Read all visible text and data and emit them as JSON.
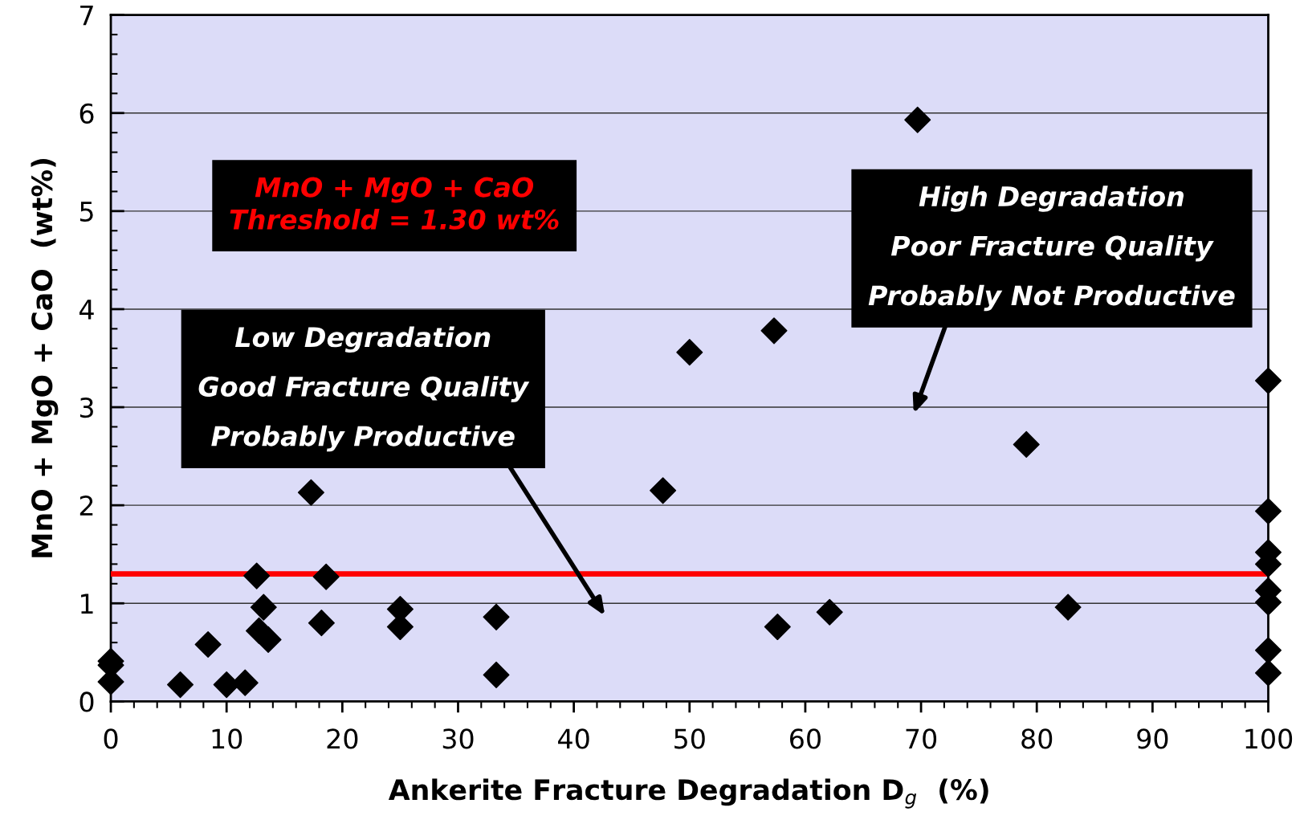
{
  "chart_data": {
    "type": "scatter",
    "xlabel": "Ankerite Fracture Degradation D$_{g}$  (%)",
    "ylabel": "MnO + MgO + CaO  (wt%)",
    "x": [
      0,
      0,
      0,
      6,
      8.4,
      10,
      11.6,
      12.6,
      12.8,
      13.2,
      13.6,
      17.3,
      18.2,
      18.6,
      25,
      25,
      33.3,
      33.3,
      47.7,
      50,
      57.3,
      57.6,
      62.1,
      69.7,
      79.1,
      82.7,
      100,
      100,
      100,
      100,
      100,
      100,
      100,
      100
    ],
    "series": [
      {
        "color": "#000000",
        "values": [
          0.41,
          0.37,
          0.2,
          0.17,
          0.58,
          0.17,
          0.19,
          1.28,
          0.72,
          0.96,
          0.63,
          2.13,
          0.8,
          1.27,
          0.94,
          0.76,
          0.86,
          0.27,
          2.15,
          3.56,
          3.78,
          0.76,
          0.91,
          5.93,
          2.62,
          0.96,
          3.27,
          1.94,
          1.52,
          1.4,
          1.13,
          1.01,
          0.52,
          0.29
        ]
      }
    ],
    "marker": "diamond",
    "xlim": [
      0,
      100
    ],
    "ylim": [
      0,
      7
    ],
    "xticks": [
      0,
      10,
      20,
      30,
      40,
      50,
      60,
      70,
      80,
      90,
      100
    ],
    "yticks": [
      0,
      1,
      2,
      3,
      4,
      5,
      6,
      7
    ],
    "grid": "y",
    "legend": false,
    "ref_lines": [
      {
        "axis": "y",
        "value": 1.3,
        "label": "MnO + MgO + CaO\nThreshold = 1.30 wt%",
        "color": "#ff0000"
      }
    ],
    "annotations": [
      "Low Degradation\nGood Fracture Quality\nProbably Productive",
      "High Degradation\nPoor Fracture Quality\nProbably Not Productive"
    ]
  }
}
